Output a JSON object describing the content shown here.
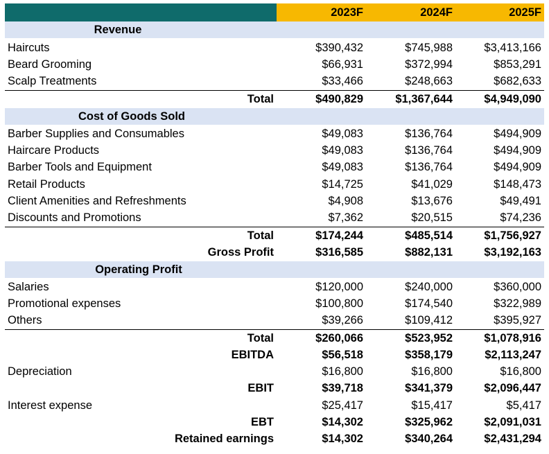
{
  "header": {
    "years": [
      "2023F",
      "2024F",
      "2025F"
    ]
  },
  "revenue": {
    "title": "Revenue",
    "items": [
      {
        "label": "Haircuts",
        "values": [
          "$390,432",
          "$745,988",
          "$3,413,166"
        ]
      },
      {
        "label": "Beard Grooming",
        "values": [
          "$66,931",
          "$372,994",
          "$853,291"
        ]
      },
      {
        "label": "Scalp Treatments",
        "values": [
          "$33,466",
          "$248,663",
          "$682,633"
        ]
      }
    ],
    "total": {
      "label": "Total",
      "values": [
        "$490,829",
        "$1,367,644",
        "$4,949,090"
      ]
    }
  },
  "cogs": {
    "title": "Cost of Goods Sold",
    "items": [
      {
        "label": "Barber Supplies and Consumables",
        "values": [
          "$49,083",
          "$136,764",
          "$494,909"
        ]
      },
      {
        "label": "Haircare Products",
        "values": [
          "$49,083",
          "$136,764",
          "$494,909"
        ]
      },
      {
        "label": "Barber Tools and Equipment",
        "values": [
          "$49,083",
          "$136,764",
          "$494,909"
        ]
      },
      {
        "label": "Retail Products",
        "values": [
          "$14,725",
          "$41,029",
          "$148,473"
        ]
      },
      {
        "label": "Client Amenities and Refreshments",
        "values": [
          "$4,908",
          "$13,676",
          "$49,491"
        ]
      },
      {
        "label": "Discounts and Promotions",
        "values": [
          "$7,362",
          "$20,515",
          "$74,236"
        ]
      }
    ],
    "total": {
      "label": "Total",
      "values": [
        "$174,244",
        "$485,514",
        "$1,756,927"
      ]
    },
    "gross_profit": {
      "label": "Gross Profit",
      "values": [
        "$316,585",
        "$882,131",
        "$3,192,163"
      ]
    }
  },
  "opex": {
    "title": "Operating Profit",
    "items": [
      {
        "label": "Salaries",
        "values": [
          "$120,000",
          "$240,000",
          "$360,000"
        ]
      },
      {
        "label": "Promotional expenses",
        "values": [
          "$100,800",
          "$174,540",
          "$322,989"
        ]
      },
      {
        "label": "Others",
        "values": [
          "$39,266",
          "$109,412",
          "$395,927"
        ]
      }
    ],
    "total": {
      "label": "Total",
      "values": [
        "$260,066",
        "$523,952",
        "$1,078,916"
      ]
    },
    "ebitda": {
      "label": "EBITDA",
      "values": [
        "$56,518",
        "$358,179",
        "$2,113,247"
      ]
    },
    "depreciation": {
      "label": "Depreciation",
      "values": [
        "$16,800",
        "$16,800",
        "$16,800"
      ]
    },
    "ebit": {
      "label": "EBIT",
      "values": [
        "$39,718",
        "$341,379",
        "$2,096,447"
      ]
    },
    "interest": {
      "label": "Interest expense",
      "values": [
        "$25,417",
        "$15,417",
        "$5,417"
      ]
    },
    "ebt": {
      "label": "EBT",
      "values": [
        "$14,302",
        "$325,962",
        "$2,091,031"
      ]
    },
    "retained": {
      "label": "Retained earnings",
      "values": [
        "$14,302",
        "$340,264",
        "$2,431,294"
      ]
    }
  }
}
